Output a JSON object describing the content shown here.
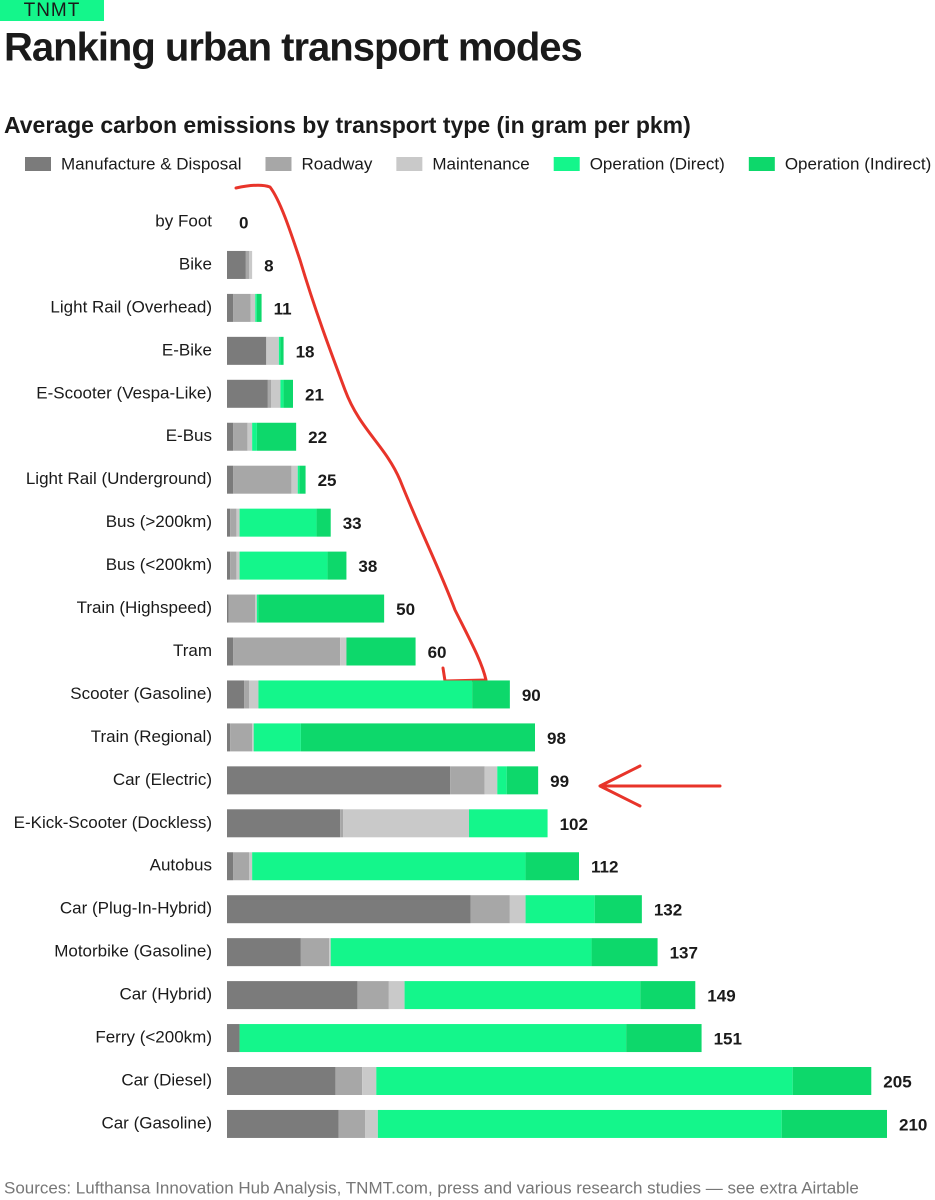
{
  "header": {
    "badge": "TNMT"
  },
  "chart_data": {
    "type": "bar",
    "orientation": "horizontal",
    "stacked": true,
    "title": "Ranking urban transport modes",
    "subtitle": "Average carbon emissions by transport type (in gram per pkm)",
    "categories": [
      "by Foot",
      "Bike",
      "Light Rail (Overhead)",
      "E-Bike",
      "E-Scooter (Vespa-Like)",
      "E-Bus",
      "Light Rail (Underground)",
      "Bus (>200km)",
      "Bus (<200km)",
      "Train (Highspeed)",
      "Tram",
      "Scooter (Gasoline)",
      "Train (Regional)",
      "Car (Electric)",
      "E-Kick-Scooter (Dockless)",
      "Autobus",
      "Car (Plug-In-Hybrid)",
      "Motorbike (Gasoline)",
      "Car (Hybrid)",
      "Ferry (<200km)",
      "Car (Diesel)",
      "Car (Gasoline)"
    ],
    "series": [
      {
        "name": "Manufacture & Disposal",
        "color": "#7b7b7b",
        "values": [
          0,
          6,
          2,
          12.5,
          13,
          2,
          2,
          1,
          1,
          0.5,
          2,
          5.5,
          1,
          71,
          36,
          2,
          77.5,
          23.5,
          41.5,
          4,
          34.5,
          35.5
        ]
      },
      {
        "name": "Roadway",
        "color": "#a7a7a7",
        "values": [
          0,
          1,
          5.5,
          0,
          1,
          4.5,
          18.5,
          2,
          2,
          8.5,
          34,
          1.5,
          7,
          11,
          1,
          5,
          12.5,
          9,
          10,
          0,
          8.5,
          8.5
        ]
      },
      {
        "name": "Maintenance",
        "color": "#c9c9c9",
        "values": [
          0,
          1,
          1.5,
          4,
          3,
          1.5,
          2,
          1,
          1,
          0.5,
          2,
          3,
          0.5,
          4,
          40,
          1,
          5,
          0.5,
          5,
          0,
          4.5,
          4
        ]
      },
      {
        "name": "Operation (Direct)",
        "color": "#14f68b",
        "values": [
          0,
          0,
          0.5,
          0.5,
          1,
          1.5,
          0.5,
          24.5,
          28,
          0.5,
          0,
          68,
          15,
          3,
          25,
          87,
          22,
          83,
          75,
          123,
          132.5,
          128.5
        ]
      },
      {
        "name": "Operation (Indirect)",
        "color": "#0dd86b",
        "values": [
          0,
          0,
          1.5,
          1,
          3,
          12.5,
          2,
          4.5,
          6,
          40,
          22,
          12,
          74.5,
          10,
          0,
          17,
          15,
          21,
          17.5,
          24,
          25,
          33.5
        ]
      }
    ],
    "totals": [
      0,
      8,
      11,
      18,
      21,
      22,
      25,
      33,
      38,
      50,
      60,
      90,
      98,
      99,
      102,
      112,
      132,
      137,
      149,
      151,
      205,
      210
    ],
    "source": "Sources: Lufthansa Innovation Hub Analysis, TNMT.com, press and various research studies — see extra Airtable"
  }
}
